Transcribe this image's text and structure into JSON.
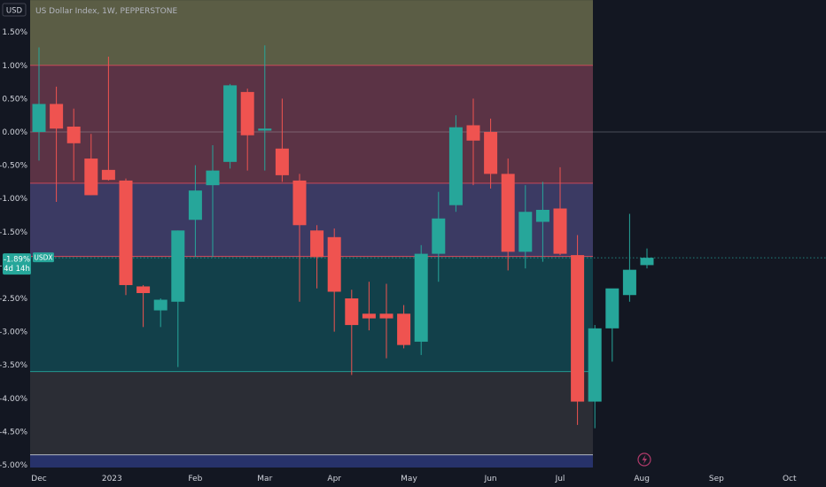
{
  "header": {
    "currency_label": "USD",
    "title": "US Dollar Index, 1W, PEPPERSTONE"
  },
  "price_tag": {
    "value": "-1.89%",
    "countdown": "4d 14h",
    "symbol": "USDX"
  },
  "colors": {
    "background": "#131722",
    "future_background": "#131722",
    "up": "#26a69a",
    "down": "#ef5350",
    "band_yellow": "#5b5d45",
    "band_red": "#5b3345",
    "band_purple": "#3b3a63",
    "band_teal": "#12404a",
    "band_gray": "#2b2d35",
    "band_blue": "#27326a",
    "line_red": "#d84a5c",
    "line_teal": "#26a69a",
    "line_white": "#c8ccd6"
  },
  "icons": {
    "bottom": "lightning-icon"
  },
  "chart_data": {
    "type": "candlestick",
    "title": "US Dollar Index, 1W, PEPPERSTONE",
    "units": "%",
    "ylim": [
      -5.15,
      1.98
    ],
    "y_ticks": [
      1.5,
      1.0,
      0.5,
      0.0,
      -0.5,
      -1.0,
      -1.5,
      -2.0,
      -2.5,
      -3.0,
      -3.5,
      -4.0,
      -4.5,
      -5.0
    ],
    "y_tick_labels": [
      "1.50%",
      "1.00%",
      "0.50%",
      "0.00%",
      "-0.50%",
      "-1.00%",
      "-1.50%",
      "-2.00%",
      "-2.50%",
      "-3.00%",
      "-3.50%",
      "-4.00%",
      "-4.50%",
      "-5.00%"
    ],
    "x_ticks": [
      {
        "label": "Dec",
        "week": 0
      },
      {
        "label": "2023",
        "week": 4.2
      },
      {
        "label": "Feb",
        "week": 9
      },
      {
        "label": "Mar",
        "week": 13
      },
      {
        "label": "Apr",
        "week": 17
      },
      {
        "label": "May",
        "week": 21.3
      },
      {
        "label": "Jun",
        "week": 26
      },
      {
        "label": "Jul",
        "week": 30
      },
      {
        "label": "Aug",
        "week": 34.7
      },
      {
        "label": "Sep",
        "week": 39
      },
      {
        "label": "Oct",
        "week": 43.2
      }
    ],
    "grid": false,
    "bands": [
      {
        "from": 1.0,
        "to": 1.98,
        "color": "band_yellow"
      },
      {
        "from": -0.77,
        "to": 1.0,
        "color": "band_red"
      },
      {
        "from": -1.87,
        "to": -0.77,
        "color": "band_purple"
      },
      {
        "from": -3.6,
        "to": -1.87,
        "color": "band_teal"
      },
      {
        "from": -4.85,
        "to": -3.6,
        "color": "band_gray"
      },
      {
        "from": -5.15,
        "to": -4.85,
        "color": "band_blue"
      }
    ],
    "levels": [
      {
        "value": 1.0,
        "color": "line_red"
      },
      {
        "value": -0.77,
        "color": "line_red"
      },
      {
        "value": -1.87,
        "color": "line_red"
      },
      {
        "value": -3.6,
        "color": "line_teal"
      },
      {
        "value": -4.85,
        "color": "line_white"
      },
      {
        "value": 0.0,
        "color": "line_white"
      }
    ],
    "last_value": -1.89,
    "candles": [
      {
        "o": 0.0,
        "h": 1.27,
        "l": -0.43,
        "c": 0.42
      },
      {
        "o": 0.42,
        "h": 0.68,
        "l": -1.05,
        "c": 0.05
      },
      {
        "o": 0.08,
        "h": 0.35,
        "l": -0.73,
        "c": -0.17
      },
      {
        "o": -0.4,
        "h": -0.03,
        "l": -0.95,
        "c": -0.95
      },
      {
        "o": -0.57,
        "h": 1.13,
        "l": -0.73,
        "c": -0.72
      },
      {
        "o": -0.73,
        "h": -0.7,
        "l": -2.45,
        "c": -2.3
      },
      {
        "o": -2.32,
        "h": -2.3,
        "l": -2.93,
        "c": -2.42
      },
      {
        "o": -2.68,
        "h": -2.5,
        "l": -2.93,
        "c": -2.52
      },
      {
        "o": -2.55,
        "h": -1.48,
        "l": -3.53,
        "c": -1.48
      },
      {
        "o": -1.32,
        "h": -0.5,
        "l": -1.88,
        "c": -0.88
      },
      {
        "o": -0.8,
        "h": -0.2,
        "l": -1.88,
        "c": -0.58
      },
      {
        "o": -0.45,
        "h": 0.72,
        "l": -0.55,
        "c": 0.7
      },
      {
        "o": 0.6,
        "h": 0.65,
        "l": -0.58,
        "c": -0.05
      },
      {
        "o": 0.02,
        "h": 1.3,
        "l": -0.58,
        "c": 0.05
      },
      {
        "o": -0.25,
        "h": 0.5,
        "l": -0.75,
        "c": -0.65
      },
      {
        "o": -0.73,
        "h": -0.63,
        "l": -2.55,
        "c": -1.4
      },
      {
        "o": -1.48,
        "h": -1.4,
        "l": -2.35,
        "c": -1.88
      },
      {
        "o": -1.58,
        "h": -1.45,
        "l": -3.0,
        "c": -2.4
      },
      {
        "o": -2.5,
        "h": -2.37,
        "l": -3.65,
        "c": -2.9
      },
      {
        "o": -2.73,
        "h": -2.25,
        "l": -2.98,
        "c": -2.8
      },
      {
        "o": -2.73,
        "h": -2.28,
        "l": -3.4,
        "c": -2.8
      },
      {
        "o": -2.73,
        "h": -2.6,
        "l": -3.25,
        "c": -3.2
      },
      {
        "o": -3.15,
        "h": -1.7,
        "l": -3.35,
        "c": -1.83
      },
      {
        "o": -1.83,
        "h": -0.9,
        "l": -2.25,
        "c": -1.3
      },
      {
        "o": -1.1,
        "h": 0.25,
        "l": -1.2,
        "c": 0.07
      },
      {
        "o": 0.1,
        "h": 0.5,
        "l": -0.8,
        "c": -0.13
      },
      {
        "o": 0.0,
        "h": 0.2,
        "l": -0.85,
        "c": -0.63
      },
      {
        "o": -0.63,
        "h": -0.4,
        "l": -2.08,
        "c": -1.8
      },
      {
        "o": -1.8,
        "h": -0.8,
        "l": -2.05,
        "c": -1.2
      },
      {
        "o": -1.35,
        "h": -0.75,
        "l": -1.95,
        "c": -1.17
      },
      {
        "o": -1.15,
        "h": -0.53,
        "l": -1.85,
        "c": -1.83
      },
      {
        "o": -1.85,
        "h": -1.55,
        "l": -4.4,
        "c": -4.05
      },
      {
        "o": -4.05,
        "h": -2.9,
        "l": -4.45,
        "c": -2.95
      },
      {
        "o": -2.95,
        "h": -2.4,
        "l": -3.45,
        "c": -2.35
      },
      {
        "o": -2.45,
        "h": -1.23,
        "l": -2.55,
        "c": -2.07
      },
      {
        "o": -2.0,
        "h": -1.75,
        "l": -2.05,
        "c": -1.89
      }
    ]
  }
}
